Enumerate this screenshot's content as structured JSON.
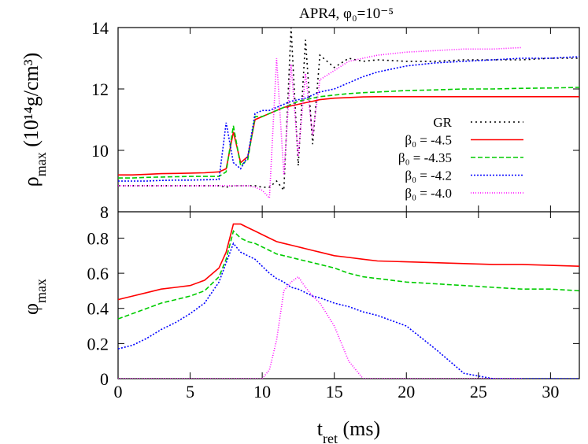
{
  "chart_data": [
    {
      "type": "line",
      "title": "APR4, φ₀=10⁻⁵",
      "ylabel": "ρ",
      "ylabel_sub": "max",
      "ylabel_unit": " (10¹⁴g/cm³)",
      "x": [
        0,
        1,
        2,
        3,
        4,
        5,
        6,
        7,
        7.5,
        8,
        8.5,
        9,
        9.5,
        10,
        10.5,
        11,
        11.5,
        12,
        12.5,
        13,
        13.5,
        14,
        15,
        16,
        17,
        18,
        20,
        22,
        24,
        26,
        28,
        30,
        32
      ],
      "xlim": [
        0,
        32
      ],
      "xticks": [
        0,
        5,
        10,
        15,
        20,
        25,
        30
      ],
      "ylim": [
        8,
        14
      ],
      "yticks": [
        8,
        10,
        12,
        14
      ],
      "legend": "right",
      "series": [
        {
          "name": "GR",
          "color": "#000000",
          "dash": "2,4",
          "values": [
            8.85,
            8.85,
            8.85,
            8.85,
            8.85,
            8.85,
            8.85,
            8.85,
            8.8,
            8.85,
            8.85,
            8.85,
            8.85,
            8.8,
            8.8,
            9.0,
            8.7,
            14.0,
            9.5,
            13.6,
            10.2,
            13.1,
            12.7,
            13.0,
            12.9,
            12.95,
            12.9,
            12.9,
            12.95,
            12.95,
            12.95,
            13.0,
            13.0
          ]
        },
        {
          "name": "β₀ = -4.5",
          "color": "#ff0000",
          "dash": "none",
          "values": [
            9.2,
            9.2,
            9.22,
            9.24,
            9.25,
            9.26,
            9.27,
            9.3,
            9.4,
            10.6,
            9.6,
            9.8,
            11.0,
            11.1,
            11.2,
            11.3,
            11.4,
            11.45,
            11.5,
            11.55,
            11.6,
            11.65,
            11.7,
            11.72,
            11.74,
            11.75,
            11.75,
            11.75,
            11.75,
            11.75,
            11.75,
            11.75,
            11.75
          ]
        },
        {
          "name": "β₀ = -4.35",
          "color": "#00cc00",
          "dash": "6,3",
          "values": [
            9.1,
            9.1,
            9.12,
            9.13,
            9.14,
            9.15,
            9.15,
            9.15,
            9.3,
            10.8,
            9.5,
            9.7,
            11.1,
            11.1,
            11.2,
            11.3,
            11.4,
            11.5,
            11.6,
            11.65,
            11.7,
            11.75,
            11.8,
            11.85,
            11.88,
            11.9,
            11.95,
            11.97,
            12.0,
            12.0,
            12.02,
            12.03,
            12.05
          ]
        },
        {
          "name": "β₀ = -4.2",
          "color": "#0000ff",
          "dash": "2,2",
          "values": [
            9.0,
            9.0,
            9.0,
            9.02,
            9.03,
            9.03,
            9.04,
            9.05,
            10.9,
            9.6,
            9.4,
            9.8,
            11.2,
            11.3,
            11.3,
            11.4,
            11.5,
            11.6,
            11.65,
            11.7,
            11.8,
            11.9,
            12.0,
            12.2,
            12.4,
            12.55,
            12.75,
            12.85,
            12.9,
            12.95,
            13.0,
            13.0,
            13.05
          ]
        },
        {
          "name": "β₀ = -4.0",
          "color": "#ff00ff",
          "dash": "1,2",
          "values": [
            8.85,
            8.85,
            8.85,
            8.85,
            8.85,
            8.85,
            8.85,
            8.85,
            8.85,
            8.85,
            8.85,
            8.85,
            8.8,
            8.7,
            8.45,
            13.0,
            9.2,
            12.8,
            9.8,
            12.5,
            10.5,
            12.3,
            12.6,
            12.9,
            13.0,
            13.1,
            13.2,
            13.25,
            13.3,
            13.3,
            13.35,
            null,
            null
          ]
        }
      ]
    },
    {
      "type": "line",
      "ylabel": "φ",
      "ylabel_sub": "max",
      "xlabel": "t",
      "xlabel_sub": "ret",
      "xlabel_unit": " (ms)",
      "x": [
        0,
        1,
        2,
        3,
        4,
        5,
        6,
        7,
        7.5,
        8,
        8.5,
        9,
        9.5,
        10,
        10.5,
        11,
        11.5,
        12,
        12.5,
        13,
        13.5,
        14,
        15,
        16,
        17,
        18,
        20,
        22,
        24,
        26,
        28,
        30,
        32
      ],
      "xlim": [
        0,
        32
      ],
      "xticks": [
        0,
        5,
        10,
        15,
        20,
        25,
        30
      ],
      "ylim": [
        0,
        0.95
      ],
      "yticks": [
        0,
        0.2,
        0.4,
        0.6,
        0.8
      ],
      "series": [
        {
          "color": "#ff0000",
          "dash": "none",
          "values": [
            0.45,
            0.47,
            0.49,
            0.51,
            0.52,
            0.53,
            0.56,
            0.63,
            0.72,
            0.88,
            0.88,
            0.86,
            0.84,
            0.82,
            0.8,
            0.78,
            0.77,
            0.76,
            0.75,
            0.74,
            0.73,
            0.72,
            0.7,
            0.69,
            0.68,
            0.67,
            0.665,
            0.66,
            0.655,
            0.65,
            0.65,
            0.645,
            0.64
          ]
        },
        {
          "color": "#00cc00",
          "dash": "6,3",
          "values": [
            0.34,
            0.37,
            0.4,
            0.43,
            0.45,
            0.47,
            0.5,
            0.58,
            0.68,
            0.84,
            0.8,
            0.78,
            0.77,
            0.75,
            0.73,
            0.71,
            0.7,
            0.69,
            0.68,
            0.67,
            0.66,
            0.65,
            0.63,
            0.6,
            0.58,
            0.57,
            0.55,
            0.54,
            0.53,
            0.52,
            0.51,
            0.51,
            0.5
          ]
        },
        {
          "color": "#0000ff",
          "dash": "2,2",
          "values": [
            0.17,
            0.19,
            0.23,
            0.28,
            0.32,
            0.37,
            0.43,
            0.55,
            0.66,
            0.77,
            0.72,
            0.7,
            0.68,
            0.64,
            0.6,
            0.57,
            0.55,
            0.52,
            0.51,
            0.49,
            0.47,
            0.46,
            0.43,
            0.41,
            0.38,
            0.36,
            0.3,
            0.17,
            0.03,
            0,
            0,
            0,
            0
          ]
        },
        {
          "color": "#ff00ff",
          "dash": "1,2",
          "values": [
            0,
            0,
            0,
            0,
            0,
            0,
            0,
            0,
            0,
            0,
            0,
            0,
            0,
            0,
            0.05,
            0.22,
            0.5,
            0.55,
            0.58,
            0.52,
            0.47,
            0.43,
            0.3,
            0.1,
            0,
            0,
            0,
            0,
            0,
            0,
            0,
            null,
            null
          ]
        }
      ]
    }
  ]
}
